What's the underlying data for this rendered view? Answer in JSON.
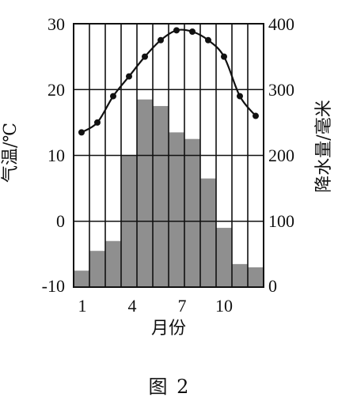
{
  "chart_data": {
    "type": "bar+line",
    "caption": "图 2",
    "xlabel": "月份",
    "y_left_label": "气温/℃",
    "y_right_label": "降水量/毫米",
    "x_ticks": [
      1,
      4,
      7,
      10
    ],
    "y_left_ticks": [
      30,
      20,
      10,
      0,
      -10
    ],
    "y_right_ticks": [
      400,
      300,
      200,
      100,
      0
    ],
    "y_left_lim": [
      -10,
      30
    ],
    "y_right_lim": [
      0,
      400
    ],
    "months": [
      1,
      2,
      3,
      4,
      5,
      6,
      7,
      8,
      9,
      10,
      11,
      12
    ],
    "precipitation": [
      25,
      55,
      70,
      200,
      285,
      275,
      235,
      225,
      165,
      90,
      35,
      30
    ],
    "temperature": [
      13.5,
      15,
      19,
      22,
      25,
      27.5,
      29,
      28.8,
      27.5,
      25,
      19,
      16
    ],
    "grid": true,
    "colors": {
      "bars": "#8f8f8f",
      "line": "#111111",
      "grid": "#111111"
    }
  }
}
